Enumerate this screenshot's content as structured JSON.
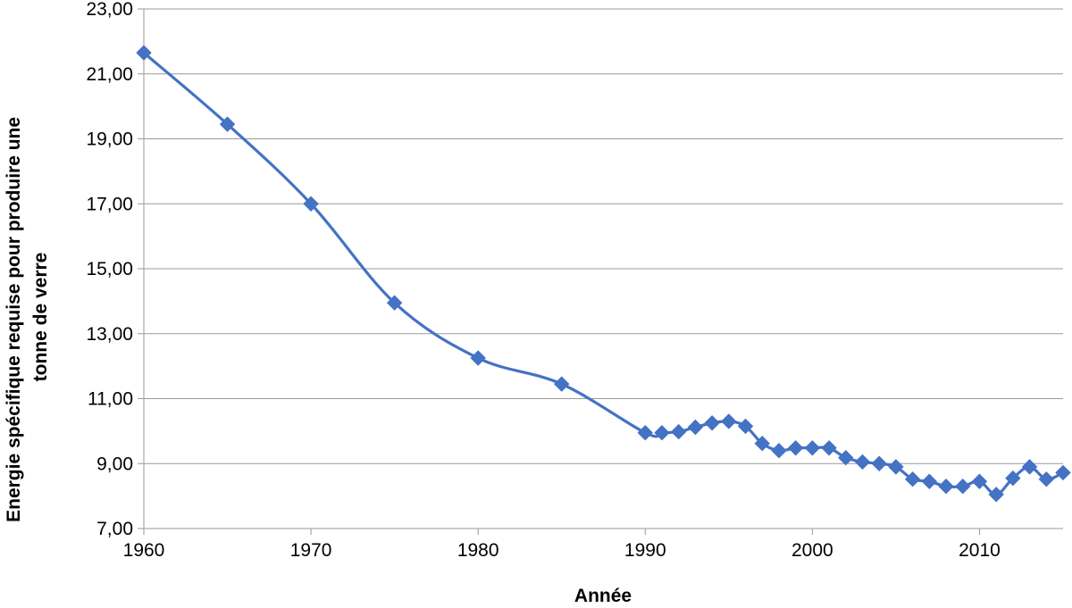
{
  "chart_data": {
    "type": "line",
    "title": "",
    "xlabel": "Année",
    "ylabel_lines": [
      "Energie spécifique requise pour produire une",
      "tonne de verre"
    ],
    "xlim": [
      1960,
      2015
    ],
    "ylim": [
      7.0,
      23.0
    ],
    "grid": "horizontal",
    "smooth": true,
    "marker": "diamond",
    "color": "#4472C4",
    "x_ticks": [
      1960,
      1970,
      1980,
      1990,
      2000,
      2010
    ],
    "x_tick_labels": [
      "1960",
      "1970",
      "1980",
      "1990",
      "2000",
      "2010"
    ],
    "y_ticks": [
      7,
      9,
      11,
      13,
      15,
      17,
      19,
      21,
      23
    ],
    "y_tick_labels": [
      "7,00",
      "9,00",
      "11,00",
      "13,00",
      "15,00",
      "17,00",
      "19,00",
      "21,00",
      "23,00"
    ],
    "series": [
      {
        "x": [
          1960,
          1965,
          1970,
          1975,
          1980,
          1985,
          1990,
          1991,
          1992,
          1993,
          1994,
          1995,
          1996,
          1997,
          1998,
          1999,
          2000,
          2001,
          2002,
          2003,
          2004,
          2005,
          2006,
          2007,
          2008,
          2009,
          2010,
          2011,
          2012,
          2013,
          2014,
          2015
        ],
        "y": [
          21.65,
          19.45,
          17.0,
          13.95,
          12.25,
          11.45,
          9.95,
          9.95,
          9.98,
          10.12,
          10.25,
          10.3,
          10.15,
          9.62,
          9.4,
          9.48,
          9.48,
          9.48,
          9.18,
          9.05,
          9.0,
          8.9,
          8.52,
          8.45,
          8.3,
          8.3,
          8.45,
          8.05,
          8.55,
          8.9,
          8.52,
          8.72
        ]
      }
    ]
  }
}
